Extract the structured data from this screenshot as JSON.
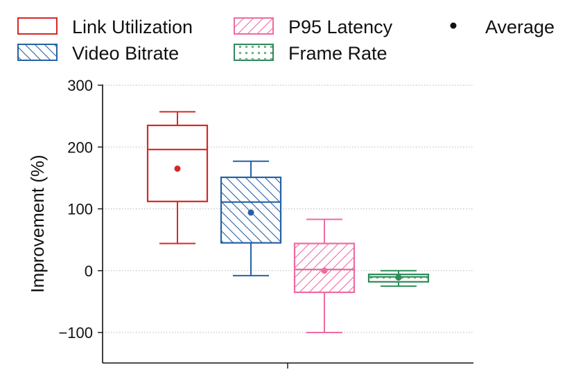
{
  "chart_data": {
    "type": "box",
    "ylabel": "Improvement (%)",
    "xlabel": "",
    "ylim": [
      -150,
      300
    ],
    "yticks": [
      -100,
      0,
      100,
      200,
      300
    ],
    "ytick_labels": [
      "−100",
      "0",
      "100",
      "200",
      "300"
    ],
    "grid": "horizontal-dotted",
    "legend_position": "top",
    "average_label": "Average",
    "series": [
      {
        "name": "Link Utilization",
        "color": "#d62728",
        "pattern": "none",
        "whisker_low": 44,
        "q1": 112,
        "median": 196,
        "q3": 235,
        "whisker_high": 257,
        "mean": 165
      },
      {
        "name": "Video Bitrate",
        "color": "#2660a4",
        "pattern": "backslash",
        "whisker_low": -8,
        "q1": 45,
        "median": 111,
        "q3": 151,
        "whisker_high": 177,
        "mean": 94
      },
      {
        "name": "P95 Latency",
        "color": "#ef6aa0",
        "pattern": "slash",
        "whisker_low": -100,
        "q1": -35,
        "median": 2,
        "q3": 44,
        "whisker_high": 83,
        "mean": 0
      },
      {
        "name": "Frame Rate",
        "color": "#2e8b57",
        "pattern": "dots",
        "whisker_low": -25,
        "q1": -18,
        "median": -10,
        "q3": -6,
        "whisker_high": 0,
        "mean": -11
      }
    ]
  }
}
